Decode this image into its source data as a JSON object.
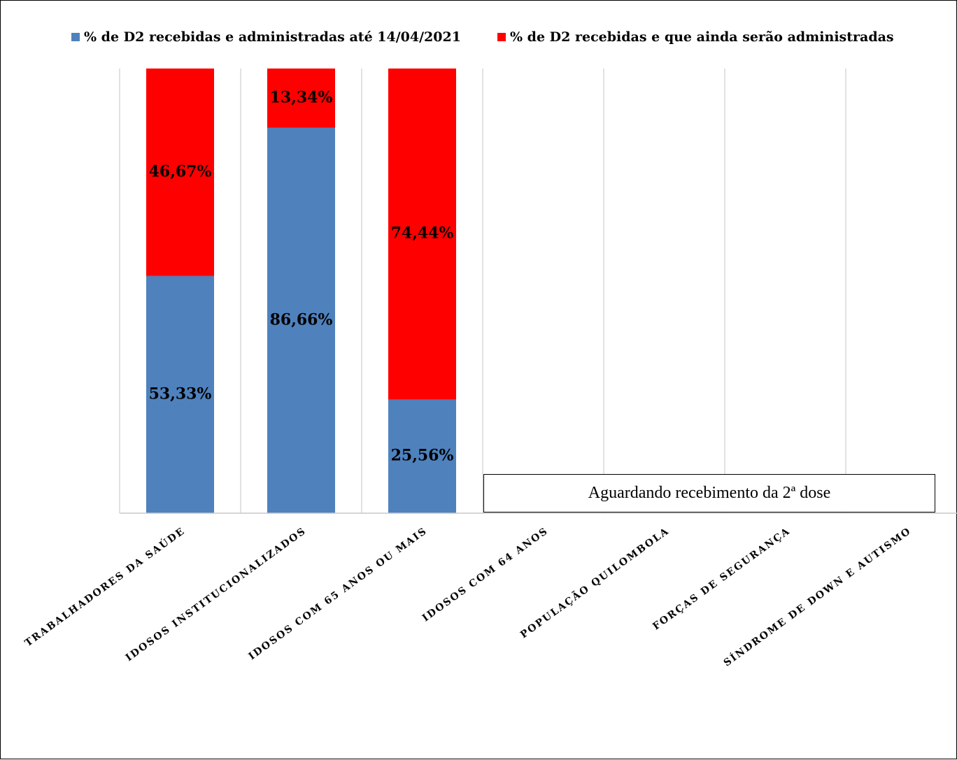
{
  "chart_data": {
    "type": "bar",
    "stacked": true,
    "categories": [
      "TRABALHADORES DA SAÚDE",
      "IDOSOS INSTITUCIONALIZADOS",
      "IDOSOS COM 65 ANOS OU MAIS",
      "IDOSOS COM 64 ANOS",
      "POPULAÇÃO QUILOMBOLA",
      "FORÇAS DE SEGURANÇA",
      "SÍNDROME DE DOWN E AUTISMO"
    ],
    "series": [
      {
        "name": "% de D2 recebidas e administradas até 14/04/2021",
        "color": "#4f81bd",
        "values": [
          53.33,
          86.66,
          25.56,
          null,
          null,
          null,
          null
        ],
        "labels": [
          "53,33%",
          "86,66%",
          "25,56%",
          "",
          "",
          "",
          ""
        ]
      },
      {
        "name": "% de D2 recebidas e que ainda serão administradas",
        "color": "#ff0000",
        "values": [
          46.67,
          13.34,
          74.44,
          null,
          null,
          null,
          null
        ],
        "labels": [
          "46,67%",
          "13,34%",
          "74,44%",
          "",
          "",
          "",
          ""
        ]
      }
    ],
    "ylim": [
      0,
      100
    ],
    "grid": "vertical",
    "legend": "top",
    "annotations": [
      "Aguardando recebimento da 2ª dose"
    ]
  }
}
